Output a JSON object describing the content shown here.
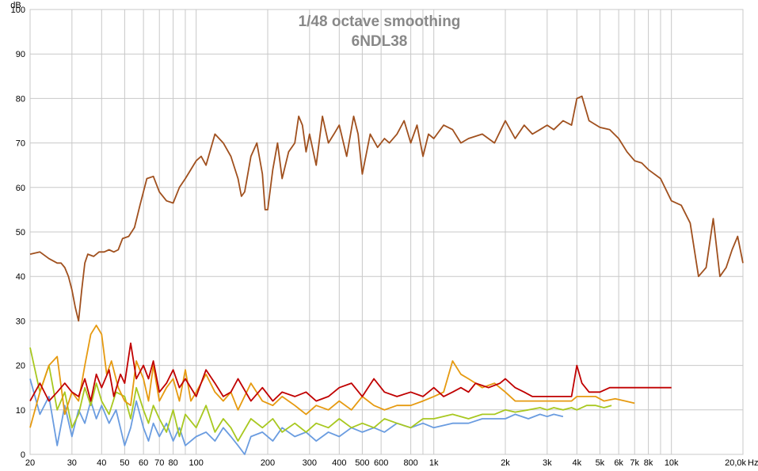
{
  "chart_data": {
    "type": "line",
    "title": "1/48 octave smoothing",
    "subtitle": "6NDL38",
    "ylabel": "dB",
    "xunit": "Hz",
    "xscale": "log",
    "xlim": [
      20,
      20000
    ],
    "ylim": [
      0,
      100
    ],
    "grid": true,
    "colors": {
      "frame": "#c8c8c8",
      "grid": "#c8c8c8",
      "background": "#ffffff",
      "title": "#888888",
      "fundamental": "#a0501e",
      "h2": "#c00000",
      "h3": "#e69a10",
      "h4": "#a8c820",
      "h5": "#6a9ce0"
    },
    "y_ticks": [
      {
        "value": 0,
        "label": "0"
      },
      {
        "value": 10,
        "label": "10"
      },
      {
        "value": 20,
        "label": "20"
      },
      {
        "value": 30,
        "label": "30"
      },
      {
        "value": 40,
        "label": "40"
      },
      {
        "value": 50,
        "label": "50"
      },
      {
        "value": 60,
        "label": "60"
      },
      {
        "value": 70,
        "label": "70"
      },
      {
        "value": 80,
        "label": "80"
      },
      {
        "value": 90,
        "label": "90"
      },
      {
        "value": 100,
        "label": "100"
      }
    ],
    "x_ticks": [
      {
        "value": 20,
        "label": "20"
      },
      {
        "value": 30,
        "label": "30"
      },
      {
        "value": 40,
        "label": "40"
      },
      {
        "value": 50,
        "label": "50"
      },
      {
        "value": 60,
        "label": "60"
      },
      {
        "value": 70,
        "label": "70"
      },
      {
        "value": 80,
        "label": "80"
      },
      {
        "value": 100,
        "label": "100"
      },
      {
        "value": 200,
        "label": "200"
      },
      {
        "value": 300,
        "label": "300"
      },
      {
        "value": 400,
        "label": "400"
      },
      {
        "value": 500,
        "label": "500"
      },
      {
        "value": 600,
        "label": "600"
      },
      {
        "value": 800,
        "label": "800"
      },
      {
        "value": 1000,
        "label": "1k"
      },
      {
        "value": 2000,
        "label": "2k"
      },
      {
        "value": 3000,
        "label": "3k"
      },
      {
        "value": 4000,
        "label": "4k"
      },
      {
        "value": 5000,
        "label": "5k"
      },
      {
        "value": 6000,
        "label": "6k"
      },
      {
        "value": 7000,
        "label": "7k"
      },
      {
        "value": 8000,
        "label": "8k"
      },
      {
        "value": 10000,
        "label": "10k"
      },
      {
        "value": 20000,
        "label": "20,0k"
      }
    ],
    "minor_x_gridlines": [
      90,
      900,
      9000
    ],
    "series": [
      {
        "key": "fundamental",
        "color": "#a0501e",
        "x": [
          20,
          22,
          24,
          26,
          27,
          28,
          29,
          30,
          31,
          32,
          33,
          34,
          35,
          37,
          39,
          41,
          43,
          45,
          47,
          49,
          52,
          55,
          58,
          62,
          66,
          70,
          75,
          80,
          85,
          90,
          100,
          105,
          110,
          120,
          130,
          140,
          150,
          155,
          160,
          170,
          180,
          190,
          195,
          200,
          210,
          220,
          230,
          245,
          260,
          270,
          280,
          290,
          300,
          320,
          340,
          360,
          380,
          400,
          430,
          460,
          480,
          500,
          540,
          580,
          620,
          650,
          700,
          750,
          800,
          850,
          900,
          950,
          1000,
          1100,
          1200,
          1300,
          1400,
          1600,
          1800,
          2000,
          2200,
          2400,
          2600,
          2800,
          3000,
          3200,
          3500,
          3800,
          4000,
          4200,
          4500,
          5000,
          5500,
          6000,
          6500,
          7000,
          7500,
          8000,
          9000,
          10000,
          11000,
          12000,
          13000,
          14000,
          15000,
          16000,
          17000,
          18000,
          19000,
          20000
        ],
        "values": [
          45,
          45.5,
          44,
          43,
          43,
          42,
          40,
          37,
          33,
          30,
          37,
          43,
          45,
          44.5,
          45.5,
          45.5,
          46,
          45.5,
          46,
          48.5,
          49,
          51,
          56,
          62,
          62.5,
          59,
          57,
          56.5,
          60,
          62,
          66,
          67,
          65,
          72,
          70,
          67,
          62,
          58,
          59,
          67,
          70,
          63,
          55,
          55,
          64,
          70,
          62,
          68,
          70,
          76,
          74,
          68,
          72,
          65,
          76,
          70,
          72,
          74,
          67,
          76,
          72,
          63,
          72,
          69,
          71,
          70,
          72,
          75,
          70,
          74,
          67,
          72,
          71,
          74,
          73,
          70,
          71,
          72,
          70,
          75,
          71,
          74,
          72,
          73,
          74,
          73,
          75,
          74,
          80,
          80.5,
          75,
          73.5,
          73,
          71,
          68,
          66,
          65.5,
          64,
          62,
          57,
          56,
          52,
          40,
          42,
          53,
          40,
          42,
          46,
          49,
          43
        ]
      },
      {
        "key": "h2",
        "color": "#c00000",
        "x": [
          20,
          22,
          24,
          26,
          28,
          30,
          32,
          34,
          36,
          38,
          40,
          43,
          45,
          48,
          50,
          53,
          56,
          60,
          63,
          66,
          70,
          75,
          80,
          85,
          90,
          100,
          110,
          120,
          130,
          140,
          150,
          170,
          190,
          210,
          230,
          260,
          290,
          320,
          360,
          400,
          450,
          500,
          560,
          620,
          700,
          800,
          900,
          1000,
          1100,
          1200,
          1300,
          1400,
          1500,
          1700,
          1900,
          2000,
          2200,
          2400,
          2600,
          2800,
          3000,
          3200,
          3500,
          3800,
          4000,
          4200,
          4500,
          5000,
          5500,
          6000,
          7000,
          8000,
          9000,
          10000
        ],
        "values": [
          12,
          16,
          12,
          14,
          16,
          14,
          13,
          17,
          12,
          18,
          15,
          19,
          13,
          18,
          16,
          25,
          17,
          20,
          17,
          21,
          14,
          16,
          19,
          15,
          17,
          13,
          19,
          16,
          13,
          14,
          17,
          12,
          15,
          12,
          14,
          13,
          14,
          12,
          13,
          15,
          16,
          13,
          17,
          14,
          13,
          14,
          13,
          15,
          13,
          14,
          15,
          14,
          16,
          15,
          16,
          17,
          15,
          14,
          13,
          13,
          13,
          13,
          13,
          13,
          20,
          16,
          14,
          14,
          15,
          15,
          15,
          15,
          15,
          15
        ]
      },
      {
        "key": "h3",
        "color": "#e69a10",
        "x": [
          20,
          22,
          24,
          26,
          28,
          30,
          32,
          34,
          36,
          38,
          40,
          42,
          44,
          47,
          50,
          53,
          56,
          60,
          63,
          66,
          70,
          75,
          80,
          85,
          90,
          95,
          100,
          110,
          120,
          130,
          140,
          150,
          170,
          190,
          210,
          230,
          260,
          290,
          320,
          360,
          400,
          450,
          500,
          560,
          620,
          700,
          800,
          900,
          1000,
          1100,
          1200,
          1300,
          1400,
          1500,
          1600,
          1800,
          2000,
          2200,
          2400,
          2600,
          2800,
          3000,
          3200,
          3500,
          3800,
          4000,
          4400,
          4800,
          5200,
          5800,
          6400,
          7000
        ],
        "values": [
          6,
          14,
          20,
          22,
          9,
          14,
          12,
          20,
          27,
          29,
          27,
          18,
          21,
          15,
          12,
          11,
          21,
          17,
          12,
          20,
          12,
          15,
          17,
          12,
          19,
          12,
          14,
          18,
          14,
          12,
          14,
          10,
          16,
          12,
          11,
          13,
          11,
          9,
          11,
          10,
          12,
          10,
          13,
          11,
          10,
          11,
          11,
          12,
          13,
          14,
          21,
          18,
          17,
          16,
          15,
          16,
          14,
          12,
          12,
          12,
          12,
          12,
          12,
          12,
          12,
          13,
          13,
          13,
          12,
          12.5,
          12,
          11.5
        ]
      },
      {
        "key": "h4",
        "color": "#a8c820",
        "x": [
          20,
          22,
          24,
          26,
          28,
          30,
          32,
          34,
          36,
          38,
          40,
          43,
          46,
          50,
          53,
          56,
          60,
          63,
          66,
          70,
          75,
          80,
          85,
          90,
          100,
          110,
          120,
          130,
          140,
          150,
          170,
          190,
          210,
          230,
          260,
          290,
          320,
          360,
          400,
          450,
          500,
          560,
          620,
          700,
          800,
          900,
          1000,
          1200,
          1400,
          1600,
          1800,
          2000,
          2200,
          2500,
          2800,
          3000,
          3200,
          3500,
          3800,
          4000,
          4400,
          4800,
          5200,
          5600
        ],
        "values": [
          24,
          14,
          20,
          10,
          14,
          6,
          9,
          15,
          11,
          16,
          12,
          9,
          14,
          13,
          8,
          15,
          10,
          7,
          11,
          8,
          5,
          10,
          4,
          9,
          6,
          11,
          5,
          8,
          6,
          3,
          8,
          6,
          8,
          5,
          7,
          5,
          7,
          6,
          8,
          6,
          7,
          6,
          8,
          7,
          6,
          8,
          8,
          9,
          8,
          9,
          9,
          10,
          9.5,
          10,
          10.5,
          10,
          10.5,
          10,
          10.5,
          10,
          11,
          11,
          10.5,
          11
        ]
      },
      {
        "key": "h5",
        "color": "#6a9ce0",
        "x": [
          20,
          22,
          24,
          26,
          28,
          30,
          32,
          34,
          36,
          38,
          40,
          43,
          46,
          50,
          53,
          56,
          60,
          63,
          66,
          70,
          75,
          80,
          85,
          90,
          100,
          110,
          120,
          130,
          140,
          150,
          160,
          170,
          190,
          210,
          230,
          260,
          290,
          320,
          360,
          400,
          450,
          500,
          560,
          620,
          700,
          800,
          900,
          1000,
          1200,
          1400,
          1600,
          1800,
          2000,
          2200,
          2500,
          2800,
          3000,
          3200,
          3500
        ],
        "values": [
          17,
          9,
          13,
          2,
          11,
          4,
          10,
          7,
          12,
          8,
          11,
          7,
          10,
          2,
          6,
          12,
          6,
          3,
          7,
          4,
          7,
          3,
          6,
          2,
          4,
          5,
          3,
          6,
          4,
          2,
          0,
          4,
          5,
          3,
          6,
          4,
          5,
          3,
          5,
          4,
          6,
          5,
          6,
          5,
          7,
          6,
          7,
          6,
          7,
          7,
          8,
          8,
          8,
          9,
          8,
          9,
          8.5,
          9,
          8.5
        ]
      }
    ]
  }
}
